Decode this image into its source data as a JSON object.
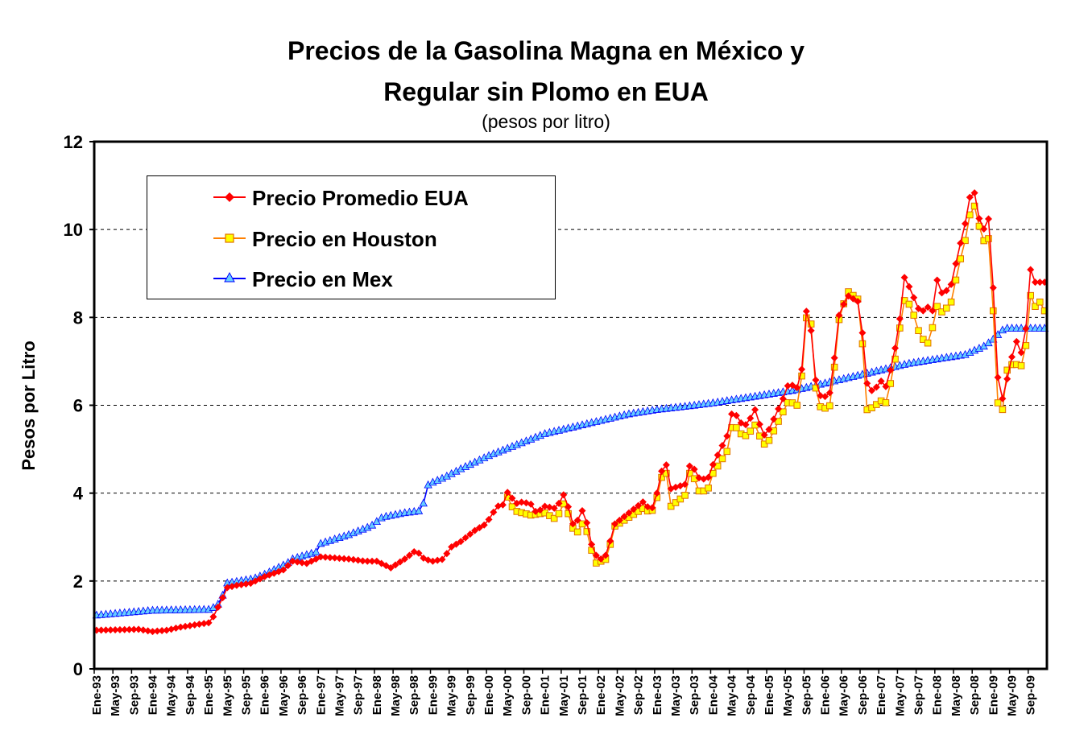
{
  "chart_data": {
    "type": "line",
    "title_line1": "Precios de la Gasolina Magna en México y",
    "title_line2": "Regular sin Plomo en EUA",
    "subtitle": "(pesos por litro)",
    "ylabel": "Pesos por Litro",
    "xlabel": "",
    "ylim": [
      0,
      12
    ],
    "yticks": [
      0,
      2,
      4,
      6,
      8,
      10,
      12
    ],
    "grid": "horizontal dashed",
    "legend_position": "top-left",
    "x_tick_labels": [
      "Ene-93",
      "May-93",
      "Sep-93",
      "Ene-94",
      "May-94",
      "Sep-94",
      "Ene-95",
      "May-95",
      "Sep-95",
      "Ene-96",
      "May-96",
      "Sep-96",
      "Ene-97",
      "May-97",
      "Sep-97",
      "Ene-98",
      "May-98",
      "Sep-98",
      "Ene-99",
      "May-99",
      "Sep-99",
      "Ene-00",
      "May-00",
      "Sep-00",
      "Ene-01",
      "May-01",
      "Sep-01",
      "Ene-02",
      "May-02",
      "Sep-02",
      "Ene-03",
      "May-03",
      "Sep-03",
      "Ene-04",
      "May-04",
      "Sep-04",
      "Ene-05",
      "May-05",
      "Sep-05",
      "Ene-06",
      "May-06",
      "Sep-06",
      "Ene-07",
      "May-07",
      "Sep-07",
      "Ene-08",
      "May-08",
      "Sep-08",
      "Ene-09",
      "May-09",
      "Sep-09"
    ],
    "series": [
      {
        "name": "Precio Promedio EUA",
        "color": "#ff0000",
        "marker": "diamond",
        "knots": [
          [
            1993.0,
            0.88
          ],
          [
            1993.75,
            0.9
          ],
          [
            1994.0,
            0.85
          ],
          [
            1994.25,
            0.88
          ],
          [
            1994.5,
            0.95
          ],
          [
            1994.75,
            1.0
          ],
          [
            1995.0,
            1.05
          ],
          [
            1995.05,
            1.1
          ],
          [
            1995.25,
            1.62
          ],
          [
            1995.33,
            1.85
          ],
          [
            1995.5,
            1.9
          ],
          [
            1995.75,
            1.95
          ],
          [
            1996.0,
            2.1
          ],
          [
            1996.33,
            2.25
          ],
          [
            1996.5,
            2.45
          ],
          [
            1996.75,
            2.4
          ],
          [
            1997.0,
            2.55
          ],
          [
            1997.5,
            2.5
          ],
          [
            1997.8,
            2.45
          ],
          [
            1998.0,
            2.45
          ],
          [
            1998.25,
            2.3
          ],
          [
            1998.5,
            2.5
          ],
          [
            1998.7,
            2.7
          ],
          [
            1998.85,
            2.5
          ],
          [
            1999.0,
            2.45
          ],
          [
            1999.2,
            2.5
          ],
          [
            1999.3,
            2.75
          ],
          [
            1999.5,
            2.9
          ],
          [
            1999.75,
            3.15
          ],
          [
            1999.95,
            3.3
          ],
          [
            2000.15,
            3.7
          ],
          [
            2000.3,
            3.75
          ],
          [
            2000.35,
            4.15
          ],
          [
            2000.45,
            3.75
          ],
          [
            2000.6,
            3.8
          ],
          [
            2000.75,
            3.75
          ],
          [
            2000.85,
            3.55
          ],
          [
            2001.0,
            3.7
          ],
          [
            2001.2,
            3.65
          ],
          [
            2001.35,
            4.0
          ],
          [
            2001.5,
            3.3
          ],
          [
            2001.6,
            3.4
          ],
          [
            2001.7,
            3.7
          ],
          [
            2001.8,
            2.95
          ],
          [
            2001.9,
            2.6
          ],
          [
            2002.0,
            2.5
          ],
          [
            2002.1,
            2.6
          ],
          [
            2002.25,
            3.3
          ],
          [
            2002.5,
            3.55
          ],
          [
            2002.75,
            3.8
          ],
          [
            2002.9,
            3.6
          ],
          [
            2003.0,
            4.0
          ],
          [
            2003.1,
            4.6
          ],
          [
            2003.15,
            4.75
          ],
          [
            2003.25,
            4.1
          ],
          [
            2003.5,
            4.2
          ],
          [
            2003.6,
            4.7
          ],
          [
            2003.75,
            4.35
          ],
          [
            2003.9,
            4.3
          ],
          [
            2004.0,
            4.65
          ],
          [
            2004.25,
            5.3
          ],
          [
            2004.35,
            5.9
          ],
          [
            2004.5,
            5.6
          ],
          [
            2004.6,
            5.55
          ],
          [
            2004.75,
            5.9
          ],
          [
            2004.9,
            5.3
          ],
          [
            2005.0,
            5.45
          ],
          [
            2005.25,
            6.15
          ],
          [
            2005.35,
            6.5
          ],
          [
            2005.5,
            6.4
          ],
          [
            2005.6,
            6.9
          ],
          [
            2005.67,
            8.2
          ],
          [
            2005.75,
            7.7
          ],
          [
            2005.85,
            6.35
          ],
          [
            2005.95,
            6.15
          ],
          [
            2006.1,
            6.3
          ],
          [
            2006.25,
            8.05
          ],
          [
            2006.4,
            8.5
          ],
          [
            2006.6,
            8.35
          ],
          [
            2006.7,
            7.3
          ],
          [
            2006.75,
            6.5
          ],
          [
            2006.85,
            6.3
          ],
          [
            2007.0,
            6.55
          ],
          [
            2007.1,
            6.4
          ],
          [
            2007.25,
            7.3
          ],
          [
            2007.35,
            8.1
          ],
          [
            2007.4,
            8.95
          ],
          [
            2007.5,
            8.7
          ],
          [
            2007.7,
            8.1
          ],
          [
            2007.85,
            8.25
          ],
          [
            2007.95,
            8.1
          ],
          [
            2008.0,
            8.85
          ],
          [
            2008.1,
            8.5
          ],
          [
            2008.25,
            8.75
          ],
          [
            2008.4,
            9.6
          ],
          [
            2008.55,
            10.4
          ],
          [
            2008.6,
            10.9
          ],
          [
            2008.7,
            10.8
          ],
          [
            2008.8,
            9.7
          ],
          [
            2008.88,
            10.45
          ],
          [
            2008.95,
            10.05
          ],
          [
            2009.05,
            7.3
          ],
          [
            2009.12,
            5.9
          ],
          [
            2009.25,
            6.6
          ],
          [
            2009.4,
            7.5
          ],
          [
            2009.5,
            7.2
          ],
          [
            2009.6,
            7.85
          ],
          [
            2009.67,
            9.15
          ],
          [
            2009.75,
            8.8
          ],
          [
            2009.85,
            8.8
          ],
          [
            2010.0,
            8.8
          ],
          [
            2010.05,
            9.05
          ],
          [
            2010.15,
            8.75
          ]
        ]
      },
      {
        "name": "Precio en Houston",
        "color": "#ffff00",
        "marker": "square",
        "knots": [
          [
            2000.3,
            4.0
          ],
          [
            2000.45,
            3.6
          ],
          [
            2000.75,
            3.5
          ],
          [
            2001.0,
            3.55
          ],
          [
            2001.2,
            3.4
          ],
          [
            2001.35,
            3.8
          ],
          [
            2001.5,
            3.2
          ],
          [
            2001.6,
            3.1
          ],
          [
            2001.7,
            3.4
          ],
          [
            2001.8,
            2.85
          ],
          [
            2001.9,
            2.4
          ],
          [
            2002.0,
            2.45
          ],
          [
            2002.1,
            2.5
          ],
          [
            2002.25,
            3.25
          ],
          [
            2002.5,
            3.45
          ],
          [
            2002.75,
            3.65
          ],
          [
            2002.9,
            3.55
          ],
          [
            2003.0,
            3.9
          ],
          [
            2003.1,
            4.45
          ],
          [
            2003.15,
            4.6
          ],
          [
            2003.25,
            3.7
          ],
          [
            2003.5,
            3.95
          ],
          [
            2003.6,
            4.55
          ],
          [
            2003.75,
            4.05
          ],
          [
            2003.9,
            4.05
          ],
          [
            2004.0,
            4.45
          ],
          [
            2004.25,
            4.95
          ],
          [
            2004.35,
            5.6
          ],
          [
            2004.5,
            5.35
          ],
          [
            2004.6,
            5.3
          ],
          [
            2004.75,
            5.55
          ],
          [
            2004.9,
            5.1
          ],
          [
            2005.0,
            5.2
          ],
          [
            2005.25,
            5.85
          ],
          [
            2005.35,
            6.1
          ],
          [
            2005.5,
            6.0
          ],
          [
            2005.6,
            6.8
          ],
          [
            2005.67,
            8.05
          ],
          [
            2005.75,
            7.85
          ],
          [
            2005.85,
            6.1
          ],
          [
            2005.95,
            5.9
          ],
          [
            2006.1,
            6.0
          ],
          [
            2006.25,
            7.95
          ],
          [
            2006.4,
            8.6
          ],
          [
            2006.6,
            8.4
          ],
          [
            2006.7,
            6.9
          ],
          [
            2006.75,
            5.9
          ],
          [
            2006.85,
            5.95
          ],
          [
            2007.0,
            6.1
          ],
          [
            2007.1,
            6.05
          ],
          [
            2007.25,
            7.05
          ],
          [
            2007.35,
            7.9
          ],
          [
            2007.4,
            8.4
          ],
          [
            2007.5,
            8.3
          ],
          [
            2007.6,
            8.0
          ],
          [
            2007.7,
            7.55
          ],
          [
            2007.85,
            7.4
          ],
          [
            2007.95,
            7.95
          ],
          [
            2008.0,
            8.25
          ],
          [
            2008.1,
            8.1
          ],
          [
            2008.25,
            8.35
          ],
          [
            2008.4,
            9.25
          ],
          [
            2008.55,
            10.0
          ],
          [
            2008.6,
            10.5
          ],
          [
            2008.7,
            10.55
          ],
          [
            2008.8,
            9.6
          ],
          [
            2008.88,
            9.95
          ],
          [
            2008.95,
            9.65
          ],
          [
            2009.05,
            6.65
          ],
          [
            2009.12,
            5.4
          ],
          [
            2009.25,
            6.8
          ],
          [
            2009.35,
            6.95
          ],
          [
            2009.5,
            6.9
          ],
          [
            2009.6,
            7.45
          ],
          [
            2009.67,
            8.55
          ],
          [
            2009.75,
            8.25
          ],
          [
            2009.8,
            8.45
          ],
          [
            2009.9,
            8.15
          ],
          [
            2010.0,
            8.15
          ],
          [
            2010.05,
            8.55
          ],
          [
            2010.15,
            8.25
          ]
        ]
      },
      {
        "name": "Precio en Mex",
        "color": "#0000ff",
        "marker": "triangle",
        "knots": [
          [
            1993.0,
            1.22
          ],
          [
            1994.0,
            1.33
          ],
          [
            1995.0,
            1.35
          ],
          [
            1995.05,
            1.36
          ],
          [
            1995.2,
            1.5
          ],
          [
            1995.33,
            1.95
          ],
          [
            1995.8,
            2.05
          ],
          [
            1996.0,
            2.15
          ],
          [
            1996.4,
            2.4
          ],
          [
            1996.5,
            2.5
          ],
          [
            1996.95,
            2.67
          ],
          [
            1997.0,
            2.85
          ],
          [
            1997.5,
            3.05
          ],
          [
            1997.9,
            3.25
          ],
          [
            1998.1,
            3.45
          ],
          [
            1998.5,
            3.55
          ],
          [
            1998.8,
            3.6
          ],
          [
            1998.92,
            4.2
          ],
          [
            1999.2,
            4.35
          ],
          [
            1999.5,
            4.55
          ],
          [
            1999.75,
            4.7
          ],
          [
            2000.0,
            4.85
          ],
          [
            2000.5,
            5.1
          ],
          [
            2001.0,
            5.35
          ],
          [
            2001.5,
            5.5
          ],
          [
            2002.0,
            5.65
          ],
          [
            2002.5,
            5.8
          ],
          [
            2003.0,
            5.9
          ],
          [
            2003.5,
            5.97
          ],
          [
            2004.0,
            6.05
          ],
          [
            2004.5,
            6.15
          ],
          [
            2005.0,
            6.25
          ],
          [
            2005.5,
            6.35
          ],
          [
            2006.0,
            6.5
          ],
          [
            2006.5,
            6.65
          ],
          [
            2007.0,
            6.8
          ],
          [
            2007.5,
            6.95
          ],
          [
            2008.0,
            7.05
          ],
          [
            2008.5,
            7.15
          ],
          [
            2008.85,
            7.35
          ],
          [
            2009.0,
            7.5
          ],
          [
            2009.2,
            7.75
          ],
          [
            2010.25,
            7.75
          ]
        ]
      }
    ]
  }
}
